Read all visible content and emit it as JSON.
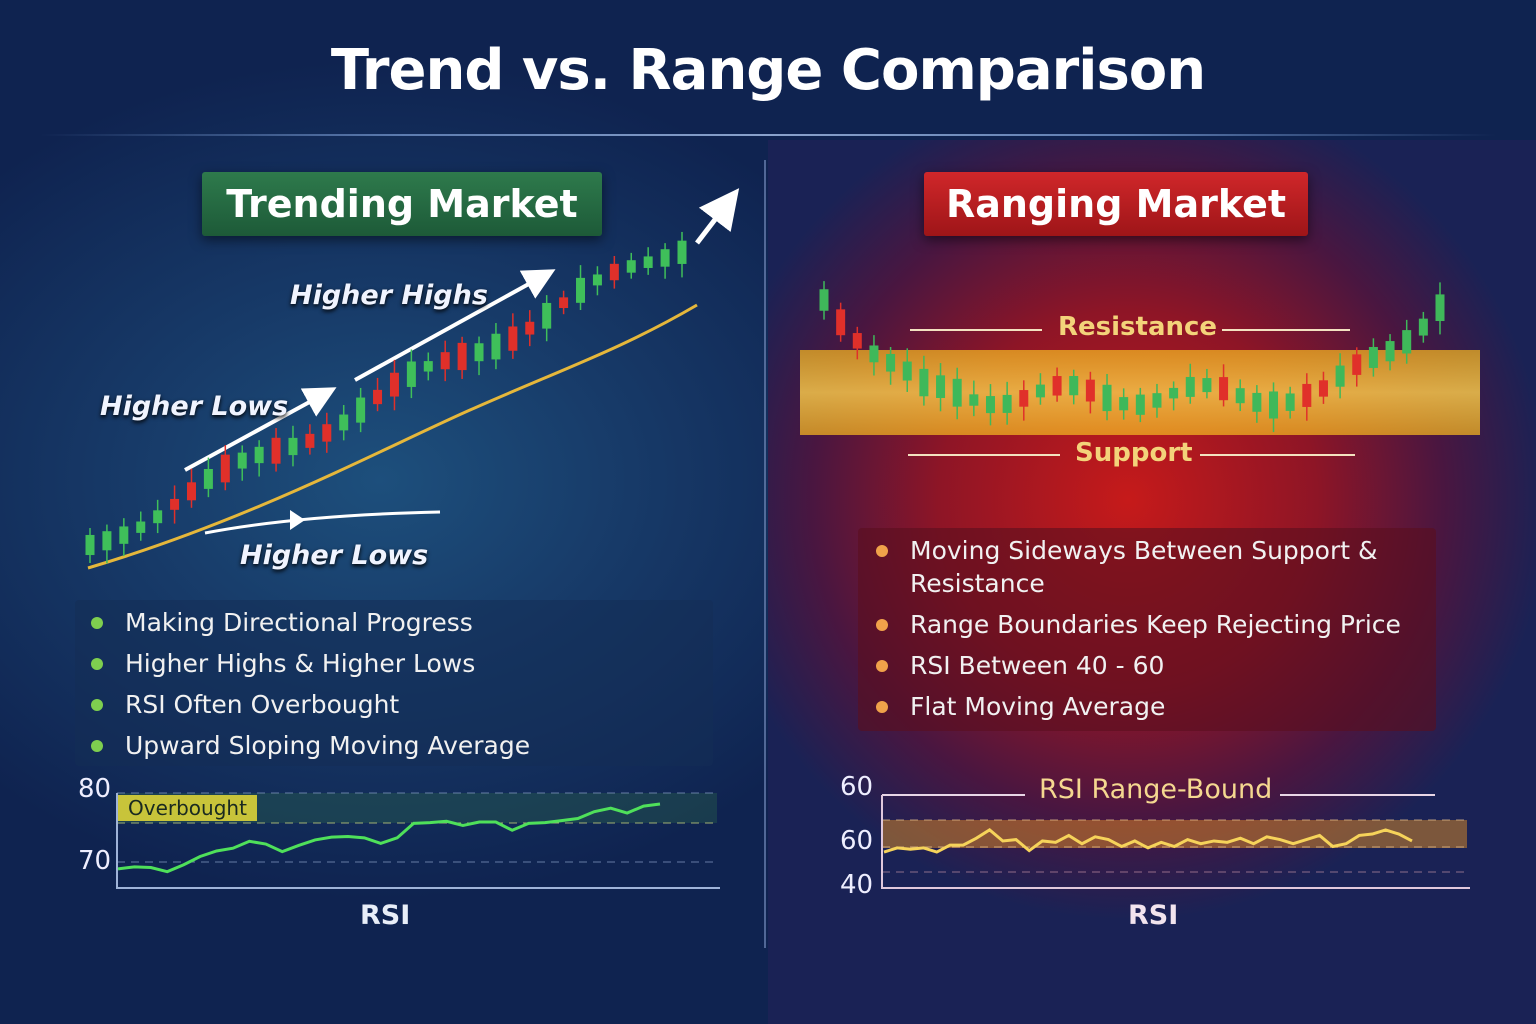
{
  "title": "Trend vs. Range Comparison",
  "trending": {
    "badge": "Trending Market",
    "labels": {
      "higher_highs": "Higher Highs",
      "higher_lows_top": "Higher Lows",
      "higher_lows_bottom": "Higher Lows"
    },
    "bullets": [
      "Making Directional Progress",
      "Higher Highs & Higher Lows",
      "RSI Often Overbought",
      "Upward Sloping Moving Average"
    ],
    "rsi": {
      "y_ticks": [
        "80",
        "70"
      ],
      "overbought": "Overbought",
      "title": "RSI",
      "values": [
        69,
        69.3,
        69.2,
        68.6,
        69.6,
        70.8,
        71.6,
        72,
        73,
        72.6,
        71.5,
        72.4,
        73.2,
        73.6,
        73.7,
        73.5,
        72.7,
        73.5,
        75.6,
        75.7,
        75.9,
        75.3,
        75.8,
        75.8,
        74.6,
        75.6,
        75.7,
        76,
        76.3,
        77.3,
        77.8,
        77.1,
        78.1,
        78.4
      ]
    },
    "colors": {
      "badge": "#2e7a4c",
      "bull": "#3fbf5a",
      "bear": "#e0302a",
      "ma": "#e5b73b"
    }
  },
  "ranging": {
    "badge": "Ranging Market",
    "resistance": "Resistance",
    "support": "Support",
    "bullets": [
      "Moving Sideways Between Support & Resistance",
      "Range Boundaries Keep Rejecting Price",
      "RSI Between 40 - 60",
      "Flat Moving Average"
    ],
    "rsi": {
      "y_ticks": [
        "60",
        "60",
        "40"
      ],
      "title": "RSI Range-Bound",
      "axis_label": "RSI",
      "values": [
        53,
        54.5,
        54,
        54.5,
        53,
        55.5,
        55.5,
        58,
        61,
        57,
        57.5,
        53.5,
        57,
        56.5,
        59,
        56,
        58.5,
        57.5,
        55,
        57,
        54.5,
        56.5,
        55,
        57.5,
        56,
        57,
        56.5,
        58,
        56,
        58.5,
        57.5,
        56,
        57.5,
        59,
        55,
        56,
        59,
        59.5,
        61,
        59.5,
        57
      ]
    },
    "colors": {
      "badge": "#c8232a",
      "band": "#f2b62a"
    }
  }
}
